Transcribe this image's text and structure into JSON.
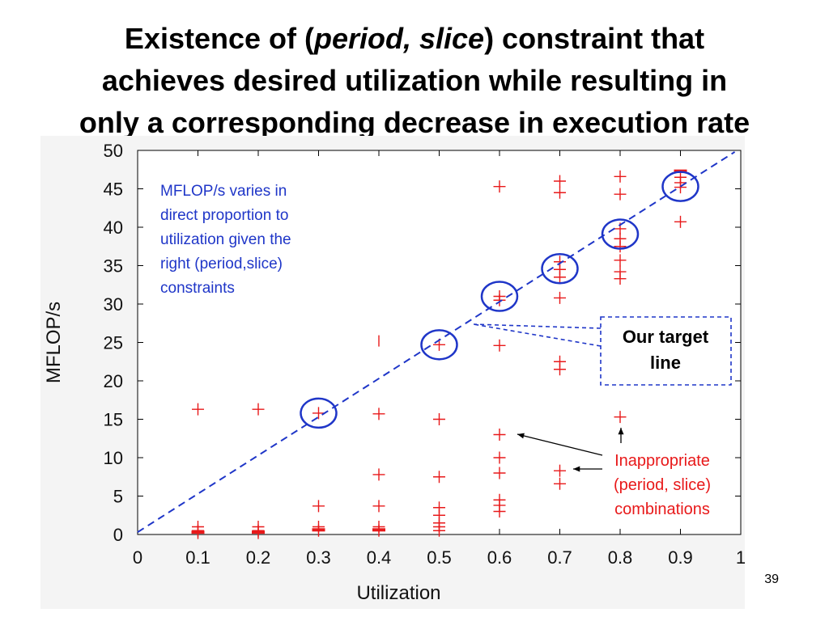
{
  "slide": {
    "title_line1_pre": "Existence of (",
    "title_line1_italic": "period, slice",
    "title_line1_post": ") constraint that",
    "title_line2": "achieves desired utilization while resulting in",
    "title_line3": "only a corresponding decrease in execution rate",
    "number": "39"
  },
  "chart_data": {
    "type": "scatter",
    "title": "",
    "xlabel": "Utilization",
    "ylabel": "MFLOP/s",
    "xlim": [
      0,
      1
    ],
    "ylim": [
      0,
      50
    ],
    "xticks": [
      "0",
      "0.1",
      "0.2",
      "0.3",
      "0.4",
      "0.5",
      "0.6",
      "0.7",
      "0.8",
      "0.9",
      "1"
    ],
    "yticks": [
      "0",
      "5",
      "10",
      "15",
      "20",
      "25",
      "30",
      "35",
      "40",
      "45",
      "50"
    ],
    "grid": false,
    "point_color": "#e8191a",
    "annotation_color": "#1f36c8",
    "series": [
      {
        "marker": "plus",
        "points": [
          [
            0.1,
            16.3
          ],
          [
            0.1,
            1.0
          ],
          [
            0.1,
            0.5
          ],
          [
            0.1,
            0.2
          ],
          [
            0.2,
            16.3
          ],
          [
            0.2,
            1.0
          ],
          [
            0.2,
            0.5
          ],
          [
            0.2,
            0.2
          ],
          [
            0.3,
            15.8
          ],
          [
            0.3,
            3.7
          ],
          [
            0.3,
            1.0
          ],
          [
            0.3,
            0.5
          ],
          [
            0.4,
            15.7
          ],
          [
            0.4,
            7.8
          ],
          [
            0.4,
            3.7
          ],
          [
            0.4,
            1.0
          ],
          [
            0.4,
            0.5
          ],
          [
            0.5,
            24.7
          ],
          [
            0.5,
            15.0
          ],
          [
            0.5,
            7.5
          ],
          [
            0.5,
            3.5
          ],
          [
            0.5,
            2.5
          ],
          [
            0.5,
            1.5
          ],
          [
            0.5,
            1.0
          ],
          [
            0.5,
            0.5
          ],
          [
            0.6,
            45.3
          ],
          [
            0.6,
            31.0
          ],
          [
            0.6,
            30.5
          ],
          [
            0.6,
            24.6
          ],
          [
            0.6,
            13.0
          ],
          [
            0.6,
            10.0
          ],
          [
            0.6,
            8.0
          ],
          [
            0.6,
            4.5
          ],
          [
            0.6,
            3.8
          ],
          [
            0.6,
            3.0
          ],
          [
            0.7,
            46.0
          ],
          [
            0.7,
            44.5
          ],
          [
            0.7,
            35.5
          ],
          [
            0.7,
            34.5
          ],
          [
            0.7,
            33.5
          ],
          [
            0.7,
            30.8
          ],
          [
            0.7,
            22.5
          ],
          [
            0.7,
            21.5
          ],
          [
            0.7,
            8.3
          ],
          [
            0.7,
            6.6
          ],
          [
            0.8,
            46.6
          ],
          [
            0.8,
            44.3
          ],
          [
            0.8,
            39.8
          ],
          [
            0.8,
            38.5
          ],
          [
            0.8,
            37.5
          ],
          [
            0.8,
            35.7
          ],
          [
            0.8,
            34.2
          ],
          [
            0.8,
            33.3
          ],
          [
            0.8,
            15.3
          ],
          [
            0.9,
            46.5
          ],
          [
            0.9,
            45.8
          ],
          [
            0.9,
            45.2
          ],
          [
            0.9,
            40.7
          ]
        ],
        "ticks": [
          [
            0.4,
            25.2
          ]
        ],
        "bars": [
          [
            0.1,
            0.3
          ],
          [
            0.2,
            0.3
          ],
          [
            0.3,
            0.6
          ],
          [
            0.4,
            0.6
          ],
          [
            0.9,
            47.3
          ]
        ]
      }
    ],
    "trend_line": {
      "from": [
        0.0,
        0.3
      ],
      "to": [
        0.99,
        49.8
      ]
    },
    "circled_points": [
      [
        0.3,
        15.8
      ],
      [
        0.5,
        24.7
      ],
      [
        0.6,
        31.0
      ],
      [
        0.7,
        34.6
      ],
      [
        0.8,
        39.1
      ],
      [
        0.9,
        45.3
      ]
    ],
    "annotations": {
      "blue_note": [
        "MFLOP/s varies in",
        "direct proportion to",
        "utilization given the",
        "right (period,slice)",
        "constraints"
      ],
      "target_box": [
        "Our target",
        "line"
      ],
      "inappropriate": [
        "Inappropriate",
        "(period, slice)",
        "combinations"
      ]
    }
  }
}
